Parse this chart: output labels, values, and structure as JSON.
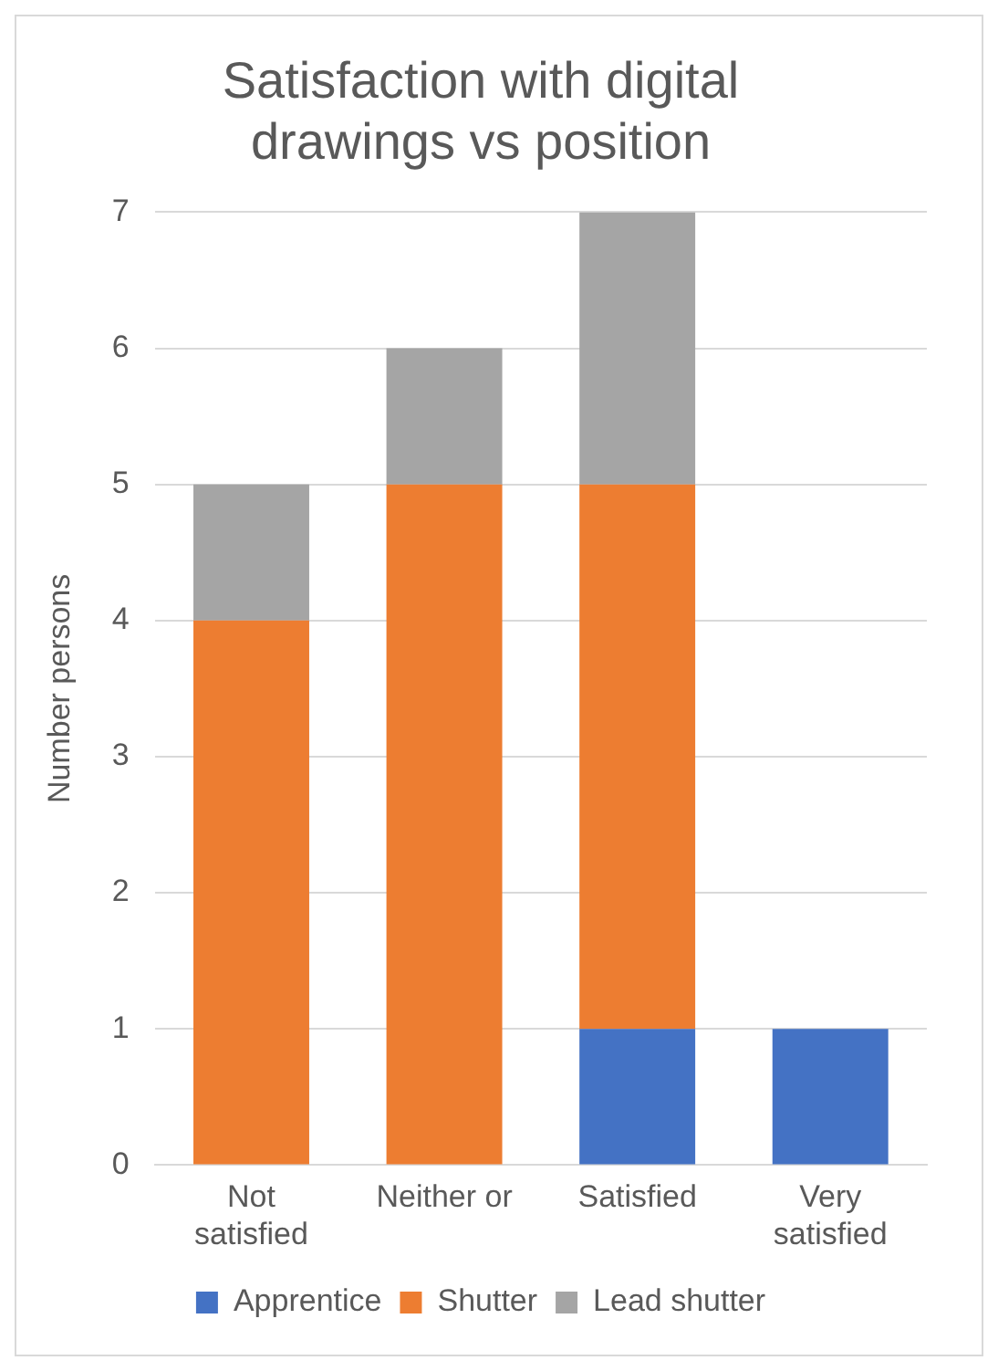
{
  "chart_data": {
    "type": "bar",
    "title": "Satisfaction with digital drawings vs position",
    "ylabel": "Number persons",
    "categories": [
      "Not satisfied",
      "Neither or",
      "Satisfied",
      "Very satisfied"
    ],
    "series": [
      {
        "name": "Apprentice",
        "color": "#4472c4",
        "values": [
          0,
          0,
          1,
          1
        ]
      },
      {
        "name": "Shutter",
        "color": "#ed7d31",
        "values": [
          4,
          5,
          4,
          0
        ]
      },
      {
        "name": "Lead shutter",
        "color": "#a5a5a5",
        "values": [
          1,
          1,
          2,
          0
        ]
      }
    ],
    "stacked": true,
    "ylim": [
      0,
      7
    ],
    "yticks": [
      0,
      1,
      2,
      3,
      4,
      5,
      6,
      7
    ],
    "grid": "y",
    "legend": "bottom"
  }
}
